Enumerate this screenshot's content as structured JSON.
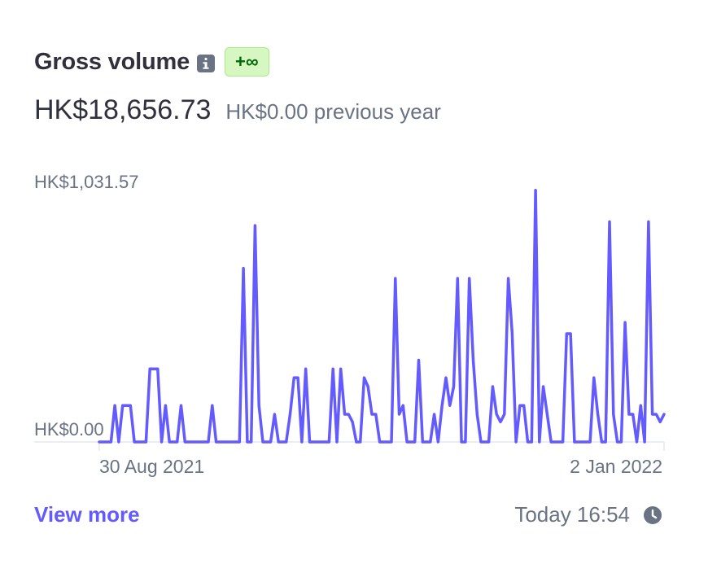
{
  "header": {
    "title": "Gross volume",
    "badge": "+∞"
  },
  "summary": {
    "total": "HK$18,656.73",
    "previous": "HK$0.00 previous year"
  },
  "footer": {
    "link": "View more",
    "updated": "Today 16:54"
  },
  "icons": {
    "info": "info-icon",
    "clock": "clock-icon"
  },
  "colors": {
    "line": "#635bff",
    "badge_bg": "#d7f7c2",
    "badge_text": "#006908",
    "link": "#635bff",
    "muted": "#6a7383",
    "title": "#30313d"
  },
  "chart_data": {
    "type": "line",
    "y_labels": [
      "HK$1,031.57",
      "HK$0.00"
    ],
    "x_labels": [
      "30 Aug 2021",
      "2 Jan 2022"
    ],
    "ylim": [
      0,
      1031.57
    ],
    "grid": false,
    "series": [
      {
        "values": [
          0,
          0,
          0,
          0,
          145,
          0,
          145,
          145,
          145,
          0,
          0,
          0,
          0,
          290,
          290,
          290,
          0,
          145,
          0,
          0,
          0,
          145,
          0,
          0,
          0,
          0,
          0,
          0,
          0,
          145,
          0,
          0,
          0,
          0,
          0,
          0,
          0,
          690,
          0,
          0,
          860,
          145,
          0,
          0,
          0,
          110,
          0,
          0,
          0,
          110,
          255,
          255,
          0,
          290,
          0,
          0,
          0,
          0,
          0,
          0,
          290,
          0,
          290,
          110,
          110,
          80,
          0,
          0,
          255,
          220,
          110,
          110,
          0,
          0,
          0,
          0,
          650,
          110,
          145,
          0,
          0,
          0,
          325,
          0,
          0,
          0,
          110,
          0,
          145,
          255,
          145,
          220,
          650,
          0,
          0,
          650,
          325,
          110,
          0,
          0,
          0,
          220,
          110,
          80,
          110,
          650,
          435,
          0,
          145,
          145,
          0,
          0,
          1000,
          0,
          220,
          110,
          0,
          0,
          0,
          0,
          430,
          430,
          0,
          0,
          0,
          0,
          0,
          255,
          110,
          0,
          0,
          875,
          110,
          0,
          0,
          475,
          110,
          110,
          0,
          145,
          0,
          875,
          110,
          110,
          80,
          110
        ]
      }
    ]
  }
}
